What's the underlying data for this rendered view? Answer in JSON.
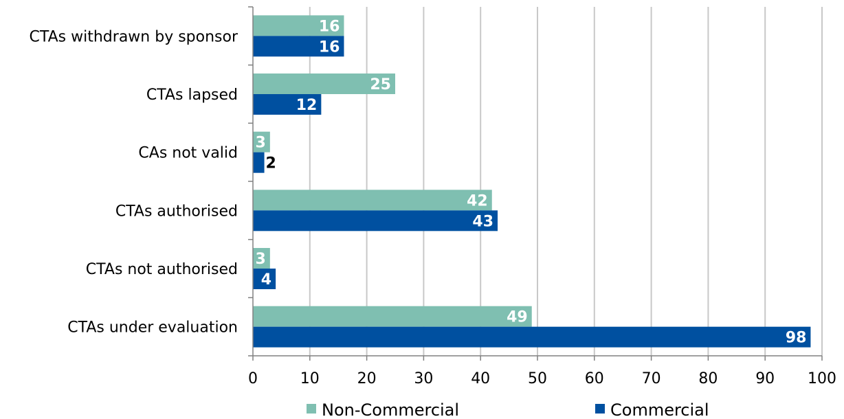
{
  "chart_data": {
    "type": "bar",
    "orientation": "horizontal",
    "categories": [
      "CTAs withdrawn by sponsor",
      "CTAs lapsed",
      "CAs not valid",
      "CTAs authorised",
      "CTAs not authorised",
      "CTAs under evaluation"
    ],
    "series": [
      {
        "name": "Non-Commercial",
        "color": "#7fbfb1",
        "values": [
          16,
          25,
          3,
          42,
          3,
          49
        ]
      },
      {
        "name": "Commercial",
        "color": "#0050a0",
        "values": [
          16,
          12,
          2,
          43,
          4,
          98
        ]
      }
    ],
    "xticks": [
      "0",
      "10",
      "20",
      "30",
      "40",
      "50",
      "60",
      "70",
      "80",
      "90",
      "100"
    ],
    "xlim": [
      0,
      100
    ],
    "grid": "vertical",
    "legend_position": "bottom",
    "title": "",
    "xlabel": "",
    "ylabel": ""
  }
}
